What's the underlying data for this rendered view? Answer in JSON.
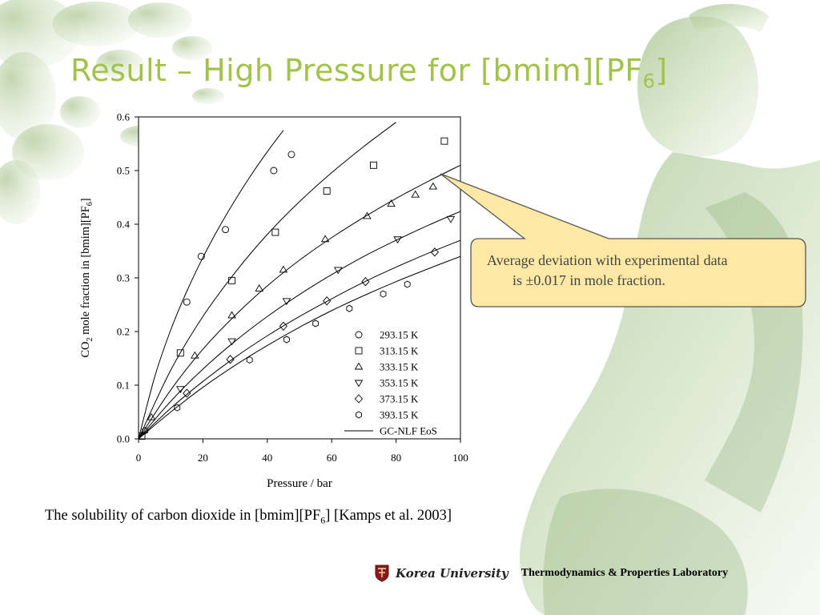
{
  "slide": {
    "title_main": "Result – High Pressure for [bmim][PF",
    "title_sub": "6",
    "title_end": "]",
    "caption_main": "The solubility of carbon dioxide in [bmim][PF",
    "caption_sub": "6",
    "caption_end": "] [Kamps et al. 2003]",
    "callout_line1": "Average deviation with experimental data",
    "callout_line2": "is ±0.017 in mole fraction.",
    "footer_university": "Korea University",
    "footer_lab": "Thermodynamics & Properties Laboratory"
  },
  "colors": {
    "title": "#a3c24a",
    "callout_fill": "#fde9a5",
    "callout_stroke": "#555555",
    "decor_green": "#c9dbb3"
  },
  "chart_data": {
    "type": "scatter",
    "title": "",
    "xlabel": "Pressure / bar",
    "ylabel_main": "CO",
    "ylabel_sub1": "2",
    "ylabel_mid": " mole fraction in [bmim][PF",
    "ylabel_sub2": "6",
    "ylabel_end": "]",
    "xlim": [
      0,
      100
    ],
    "ylim": [
      0,
      0.6
    ],
    "xticks": [
      0,
      20,
      40,
      60,
      80,
      100
    ],
    "xtick_labels": [
      "0",
      "20",
      "40",
      "60",
      "80",
      "100"
    ],
    "yticks": [
      0,
      0.1,
      0.2,
      0.3,
      0.4,
      0.5,
      0.6
    ],
    "ytick_labels": [
      "0.0",
      "0.1",
      "0.2",
      "0.3",
      "0.4",
      "0.5",
      "0.6"
    ],
    "legend_position": "lower-right inside",
    "series": [
      {
        "name": "293.15 K",
        "marker": "circle",
        "x": [
          15,
          19.5,
          27,
          42,
          47.5
        ],
        "y": [
          0.255,
          0.34,
          0.39,
          0.5,
          0.53
        ]
      },
      {
        "name": "313.15 K",
        "marker": "square",
        "x": [
          1,
          13,
          29,
          42.5,
          58.5,
          73,
          95
        ],
        "y": [
          0.005,
          0.16,
          0.295,
          0.385,
          0.462,
          0.51,
          0.555
        ]
      },
      {
        "name": "333.15 K",
        "marker": "triangle-up",
        "x": [
          4,
          17.5,
          29,
          37.5,
          45,
          58,
          71,
          78.5,
          86,
          91.5
        ],
        "y": [
          0.04,
          0.155,
          0.23,
          0.28,
          0.315,
          0.372,
          0.415,
          0.438,
          0.455,
          0.47
        ]
      },
      {
        "name": "353.15 K",
        "marker": "triangle-down",
        "x": [
          13,
          29,
          46,
          62,
          80.5,
          97
        ],
        "y": [
          0.093,
          0.182,
          0.257,
          0.315,
          0.372,
          0.41
        ]
      },
      {
        "name": "373.15 K",
        "marker": "diamond",
        "x": [
          15,
          28.5,
          45,
          58.5,
          70.5,
          92
        ],
        "y": [
          0.085,
          0.148,
          0.21,
          0.257,
          0.293,
          0.348
        ]
      },
      {
        "name": "393.15 K",
        "marker": "hexagon",
        "x": [
          2,
          12,
          34.5,
          46,
          55,
          65.5,
          76,
          83.5
        ],
        "y": [
          0.015,
          0.058,
          0.147,
          0.185,
          0.215,
          0.243,
          0.27,
          0.288
        ]
      }
    ],
    "model_name": "GC-NLF EoS",
    "model_curves": [
      {
        "for": "293.15 K",
        "x": [
          0,
          5,
          10,
          15,
          20,
          25,
          30,
          35,
          40,
          45
        ],
        "y": [
          0,
          0.115,
          0.203,
          0.275,
          0.338,
          0.394,
          0.445,
          0.492,
          0.535,
          0.575
        ]
      },
      {
        "for": "313.15 K",
        "x": [
          0,
          10,
          20,
          30,
          40,
          50,
          60,
          70,
          80
        ],
        "y": [
          0,
          0.128,
          0.228,
          0.31,
          0.381,
          0.442,
          0.496,
          0.545,
          0.59
        ]
      },
      {
        "for": "333.15 K",
        "x": [
          0,
          10,
          20,
          30,
          40,
          50,
          60,
          70,
          80,
          90,
          100
        ],
        "y": [
          0,
          0.091,
          0.167,
          0.23,
          0.285,
          0.333,
          0.375,
          0.413,
          0.448,
          0.48,
          0.51
        ]
      },
      {
        "for": "353.15 K",
        "x": [
          0,
          10,
          20,
          30,
          40,
          50,
          60,
          70,
          80,
          90,
          100
        ],
        "y": [
          0,
          0.07,
          0.13,
          0.182,
          0.228,
          0.269,
          0.306,
          0.34,
          0.37,
          0.398,
          0.424
        ]
      },
      {
        "for": "373.15 K",
        "x": [
          0,
          10,
          20,
          30,
          40,
          50,
          60,
          70,
          80,
          90,
          100
        ],
        "y": [
          0,
          0.057,
          0.107,
          0.152,
          0.192,
          0.228,
          0.261,
          0.292,
          0.32,
          0.346,
          0.37
        ]
      },
      {
        "for": "393.15 K",
        "x": [
          0,
          10,
          20,
          30,
          40,
          50,
          60,
          70,
          80,
          90,
          100
        ],
        "y": [
          0,
          0.05,
          0.096,
          0.137,
          0.174,
          0.208,
          0.239,
          0.267,
          0.293,
          0.317,
          0.34
        ]
      }
    ]
  }
}
